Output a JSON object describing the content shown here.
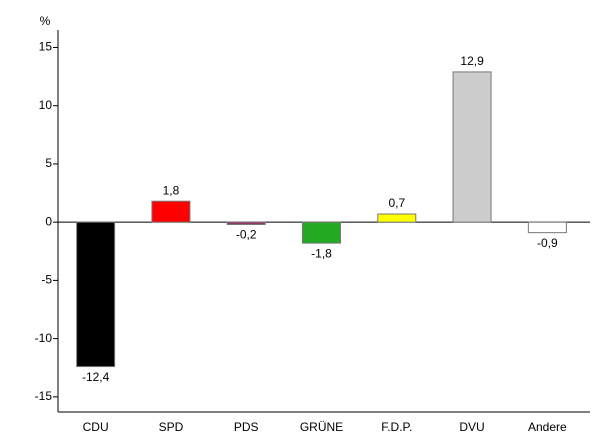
{
  "chart_data": {
    "type": "bar",
    "y_label": "%",
    "categories": [
      "CDU",
      "SPD",
      "PDS",
      "GRÜNE",
      "F.D.P.",
      "DVU",
      "Andere"
    ],
    "values": [
      -12.4,
      1.8,
      -0.2,
      -1.8,
      0.7,
      12.9,
      -0.9
    ],
    "value_labels": [
      "-12,4",
      "1,8",
      "-0,2",
      "-1,8",
      "0,7",
      "12,9",
      "-0,9"
    ],
    "colors": [
      "#000000",
      "#ff0000",
      "#993366",
      "#22aa22",
      "#ffff00",
      "#cccccc",
      "#ffffff"
    ],
    "ylim": [
      -16.3,
      16.5
    ],
    "yticks": [
      -15,
      -10,
      -5,
      0,
      5,
      10,
      15
    ],
    "grid": false
  }
}
